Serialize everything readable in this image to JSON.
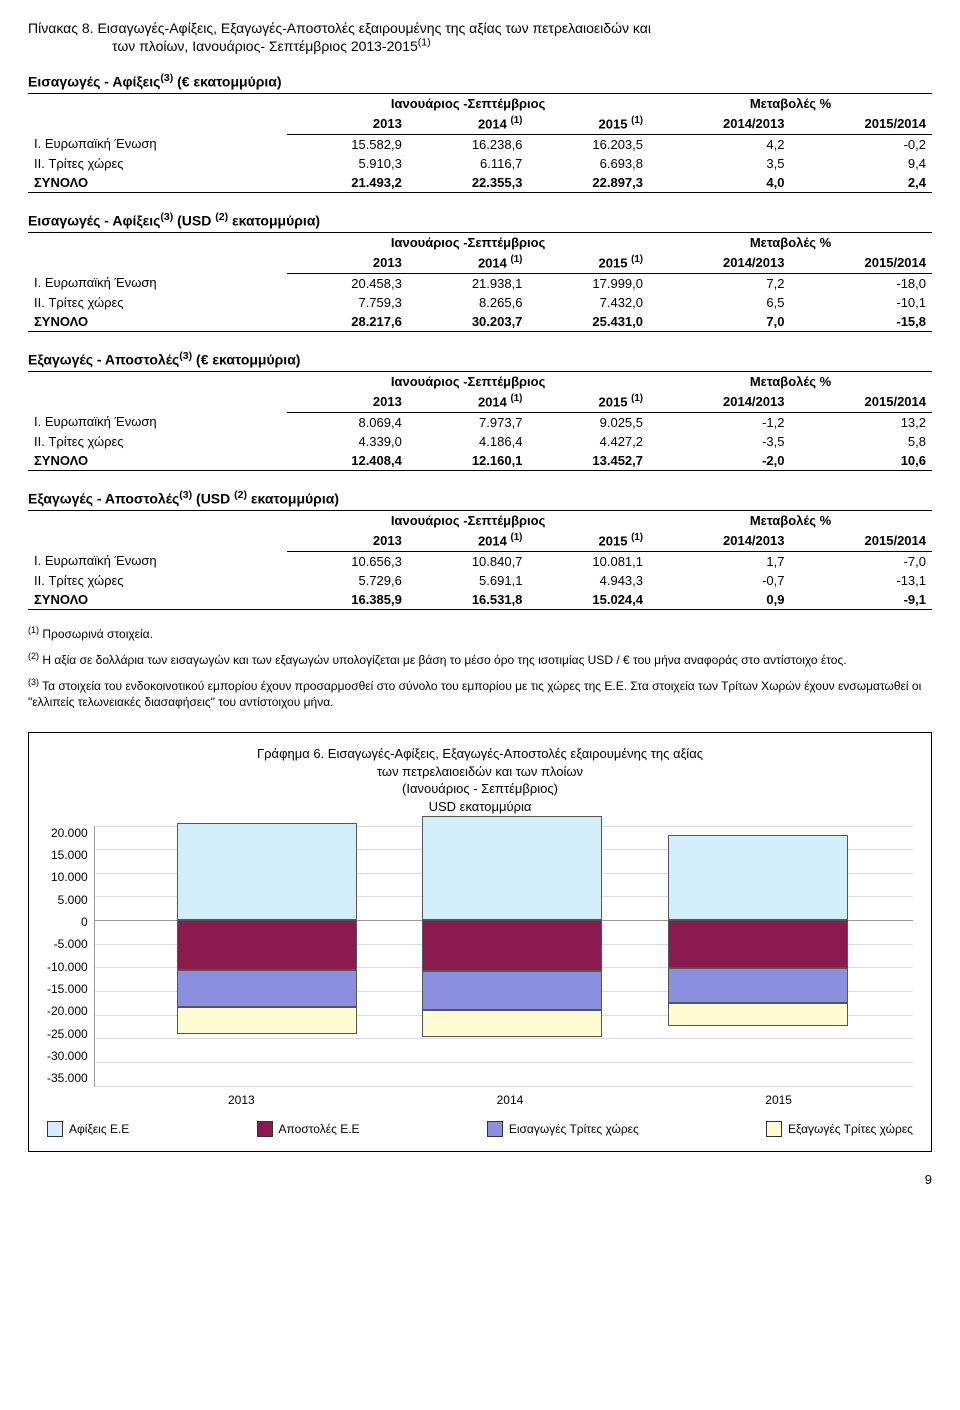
{
  "page_title": {
    "line1": "Πίνακας 8. Εισαγωγές-Αφίξεις, Εξαγωγές-Αποστολές εξαιρουμένης της αξίας των πετρελαιοειδών και",
    "line2": "των πλοίων, Ιανουάριος- Σεπτέμβριος 2013-2015",
    "sup": "(1)"
  },
  "headers": {
    "period": "Ιανουάριος -Σεπτέμβριος",
    "changes": "Μεταβολές %",
    "c2013": "2013",
    "c2014": "2014",
    "c2015": "2015",
    "c2014sup": "(1)",
    "c2015sup": "(1)",
    "r1": "2014/2013",
    "r2": "2015/2014"
  },
  "row_labels": {
    "eu": "I. Ευρωπαϊκή Ένωση",
    "third": "II. Τρίτες χώρες",
    "total": "ΣΥΝΟΛΟ"
  },
  "tables": [
    {
      "heading": "Εισαγωγές - Αφίξεις",
      "heading_sup": "(3)",
      "heading_tail": " (€ εκατομμύρια)",
      "rows": [
        [
          "eu",
          "15.582,9",
          "16.238,6",
          "16.203,5",
          "4,2",
          "-0,2"
        ],
        [
          "third",
          "5.910,3",
          "6.116,7",
          "6.693,8",
          "3,5",
          "9,4"
        ],
        [
          "total",
          "21.493,2",
          "22.355,3",
          "22.897,3",
          "4,0",
          "2,4"
        ]
      ]
    },
    {
      "heading": "Εισαγωγές - Αφίξεις",
      "heading_sup": "(3)",
      "heading_tail_pre": " (USD",
      "heading_tail_sup": "(2)",
      "heading_tail_post": " εκατομμύρια)",
      "rows": [
        [
          "eu",
          "20.458,3",
          "21.938,1",
          "17.999,0",
          "7,2",
          "-18,0"
        ],
        [
          "third",
          "7.759,3",
          "8.265,6",
          "7.432,0",
          "6,5",
          "-10,1"
        ],
        [
          "total",
          "28.217,6",
          "30.203,7",
          "25.431,0",
          "7,0",
          "-15,8"
        ]
      ]
    },
    {
      "heading": "Εξαγωγές - Αποστολές",
      "heading_sup": "(3)",
      "heading_tail": " (€ εκατομμύρια)",
      "rows": [
        [
          "eu",
          "8.069,4",
          "7.973,7",
          "9.025,5",
          "-1,2",
          "13,2"
        ],
        [
          "third",
          "4.339,0",
          "4.186,4",
          "4.427,2",
          "-3,5",
          "5,8"
        ],
        [
          "total",
          "12.408,4",
          "12.160,1",
          "13.452,7",
          "-2,0",
          "10,6"
        ]
      ]
    },
    {
      "heading": "Εξαγωγές - Αποστολές",
      "heading_sup": "(3)",
      "heading_tail_pre": " (USD",
      "heading_tail_sup": "(2)",
      "heading_tail_post": " εκατομμύρια)",
      "rows": [
        [
          "eu",
          "10.656,3",
          "10.840,7",
          "10.081,1",
          "1,7",
          "-7,0"
        ],
        [
          "third",
          "5.729,6",
          "5.691,1",
          "4.943,3",
          "-0,7",
          "-13,1"
        ],
        [
          "total",
          "16.385,9",
          "16.531,8",
          "15.024,4",
          "0,9",
          "-9,1"
        ]
      ]
    }
  ],
  "footnotes": {
    "f1_sup": "(1)",
    "f1": " Προσωρινά στοιχεία.",
    "f2_sup": "(2)",
    "f2": " Η αξία σε δολλάρια των εισαγωγών και των εξαγωγών υπολογίζεται με βάση το μέσο όρο της ισοτιμίας USD / € του μήνα αναφοράς στο αντίστοιχο έτος.",
    "f3_sup": "(3)",
    "f3": " Τα στοιχεία του ενδοκοινοτικού εμπορίου έχουν προσαρμοσθεί στο σύνολο του εμπορίου με τις χώρες της Ε.Ε. Στα στοιχεία των Τρίτων Χωρών έχουν ενσωματωθεί οι \"ελλιπείς τελωνειακές διασαφήσεις\" του αντίστοιχου μήνα."
  },
  "chart": {
    "title_l1": "Γράφημα 6. Εισαγωγές-Αφίξεις,  Εξαγωγές-Αποστολές εξαιρουμένης της αξίας",
    "title_l2": "των πετρελαιοειδών και  των πλοίων",
    "title_l3": "(Ιανουάριος - Σεπτέμβριος)",
    "title_l4": "USD εκατομμύρια",
    "ylim": [
      -35000,
      20000
    ],
    "ytick_step": 5000,
    "ytick_labels": [
      "20.000",
      "15.000",
      "10.000",
      "5.000",
      "0",
      "-5.000",
      "-10.000",
      "-15.000",
      "-20.000",
      "-25.000",
      "-30.000",
      "-35.000"
    ],
    "categories": [
      "2013",
      "2014",
      "2015"
    ],
    "series": [
      {
        "key": "afixeis_ee",
        "label": "Αφίξεις Ε.Ε",
        "color": "#d1eefa",
        "values": [
          20458,
          21938,
          17999
        ]
      },
      {
        "key": "apostoles_ee",
        "label": "Αποστολές  Ε.Ε",
        "color": "#8b1a4f",
        "values": [
          -10656,
          -10841,
          -10081
        ]
      },
      {
        "key": "eisagoges_trites",
        "label": "Εισαγωγές Τρίτες χώρες",
        "color": "#8b8fe0",
        "values": [
          -7759,
          -8266,
          -7432
        ]
      },
      {
        "key": "exagoges_trites",
        "label": "Εξαγωγές Τρίτες χώρες",
        "color": "#fefad2",
        "values": [
          -5730,
          -5691,
          -4943
        ]
      }
    ],
    "bar_positions_pct": [
      10,
      40,
      70
    ],
    "bar_width_pct": 22,
    "grid_color": "#dcdcdc",
    "axis_color": "#9a9a9a"
  },
  "page_number": "9"
}
